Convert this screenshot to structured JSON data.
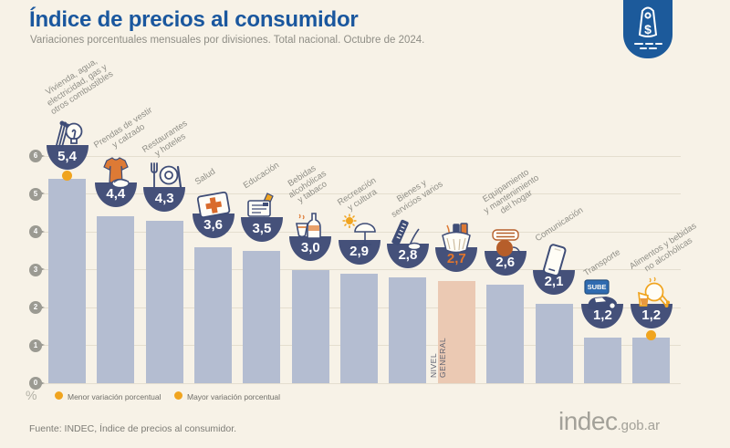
{
  "header": {
    "title": "Índice de precios al consumidor",
    "subtitle": "Variaciones porcentuales mensuales por divisiones. Total nacional. Octubre de 2024.",
    "logo_icon": "price-tag-icon"
  },
  "chart_data": {
    "type": "bar",
    "title": "Índice de precios al consumidor",
    "subtitle": "Variaciones porcentuales mensuales por divisiones. Total nacional. Octubre de 2024.",
    "unit": "%",
    "ylim": [
      0,
      6
    ],
    "yticks": [
      0,
      1,
      2,
      3,
      4,
      5,
      6
    ],
    "grid": true,
    "legend_position": "bottom",
    "categories": [
      "Vivienda, agua, electricidad, gas y otros combustibles",
      "Prendas de vestir y calzado",
      "Restaurantes y hoteles",
      "Salud",
      "Educación",
      "Bebidas alcohólicas y tabaco",
      "Recreación y cultura",
      "Bienes y servicios varios",
      "Nivel general",
      "Equipamiento y mantenimiento del hogar",
      "Comunicación",
      "Transporte",
      "Alimentos y bebidas no alcohólicas"
    ],
    "values": [
      5.4,
      4.4,
      4.3,
      3.6,
      3.5,
      3.0,
      2.9,
      2.8,
      2.7,
      2.6,
      2.1,
      1.2,
      1.2
    ],
    "value_labels": [
      "5,4",
      "4,4",
      "4,3",
      "3,6",
      "3,5",
      "3,0",
      "2,9",
      "2,8",
      "2,7",
      "2,6",
      "2,1",
      "1,2",
      "1,2"
    ],
    "general_level": {
      "label": "NIVEL GENERAL",
      "value": 2.7,
      "display": "2,7"
    },
    "max_category": "Vivienda, agua, electricidad, gas y otros combustibles",
    "min_category": "Alimentos y bebidas no alcohólicas",
    "columns": [
      {
        "category": "Vivienda, agua, electricidad, gas y otros combustibles",
        "label_lines": [
          "Vivienda, agua,",
          "electricidad, gas y",
          "otros combustibles"
        ],
        "value": 5.4,
        "display": "5,4",
        "icon": "lightbulb-matches-icon",
        "marker": "mayor"
      },
      {
        "category": "Prendas de vestir y calzado",
        "label_lines": [
          "Prendas de vestir",
          "y calzado"
        ],
        "value": 4.4,
        "display": "4,4",
        "icon": "clothing-icon"
      },
      {
        "category": "Restaurantes y hoteles",
        "label_lines": [
          "Restaurantes",
          "y hoteles"
        ],
        "value": 4.3,
        "display": "4,3",
        "icon": "restaurant-icon"
      },
      {
        "category": "Salud",
        "label_lines": [
          "Salud"
        ],
        "value": 3.6,
        "display": "3,6",
        "icon": "first-aid-icon"
      },
      {
        "category": "Educación",
        "label_lines": [
          "Educación"
        ],
        "value": 3.5,
        "display": "3,5",
        "icon": "book-icon"
      },
      {
        "category": "Bebidas alcohólicas y tabaco",
        "label_lines": [
          "Bebidas",
          "alcohólicas",
          "y tabaco"
        ],
        "value": 3.0,
        "display": "3,0",
        "icon": "drinks-icon"
      },
      {
        "category": "Recreación y cultura",
        "label_lines": [
          "Recreación",
          "y cultura"
        ],
        "value": 2.9,
        "display": "2,9",
        "icon": "umbrella-sun-icon"
      },
      {
        "category": "Bienes y servicios varios",
        "label_lines": [
          "Bienes y",
          "servicios varios"
        ],
        "value": 2.8,
        "display": "2,8",
        "icon": "comb-icon"
      },
      {
        "category": "Nivel general",
        "label_lines": [],
        "in_bar_lines": [
          "NIVEL",
          "GENERAL"
        ],
        "value": 2.7,
        "display": "2,7",
        "icon": "shopping-basket-icon",
        "highlight": true
      },
      {
        "category": "Equipamiento y mantenimiento del hogar",
        "label_lines": [
          "Equipamiento",
          "y mantenimiento",
          "del hogar"
        ],
        "value": 2.6,
        "display": "2,6",
        "icon": "vacuum-icon"
      },
      {
        "category": "Comunicación",
        "label_lines": [
          "Comunicación"
        ],
        "value": 2.1,
        "display": "2,1",
        "icon": "smartphone-icon"
      },
      {
        "category": "Transporte",
        "label_lines": [
          "Transporte"
        ],
        "value": 1.2,
        "display": "1,2",
        "icon": "car-sube-icon"
      },
      {
        "category": "Alimentos y bebidas no alcohólicas",
        "label_lines": [
          "Alimentos y bebidas",
          "no alcohólicas"
        ],
        "value": 1.2,
        "display": "1,2",
        "icon": "chicken-icon",
        "marker": "menor"
      }
    ]
  },
  "legend": {
    "items": [
      {
        "label": "Menor variación porcentual",
        "icon": "dot-icon",
        "color": "#f0a41f"
      },
      {
        "label": "Mayor variación porcentual",
        "icon": "dot-icon",
        "color": "#f0a41f"
      }
    ]
  },
  "footer": {
    "source": "Fuente: INDEC, Índice de precios al consumidor.",
    "brand": "indec",
    "brand_suffix": ".gob.ar"
  },
  "colors": {
    "background": "#f7f2e7",
    "title_blue": "#1a579e",
    "bar": "#b4bdd1",
    "bar_highlight": "#ebc9b3",
    "bowl_navy": "#45517a",
    "value_orange": "#e2762d",
    "marker_dot": "#f0a41f",
    "badge_blue": "#1c5a9b",
    "grid": "#e4decf"
  }
}
